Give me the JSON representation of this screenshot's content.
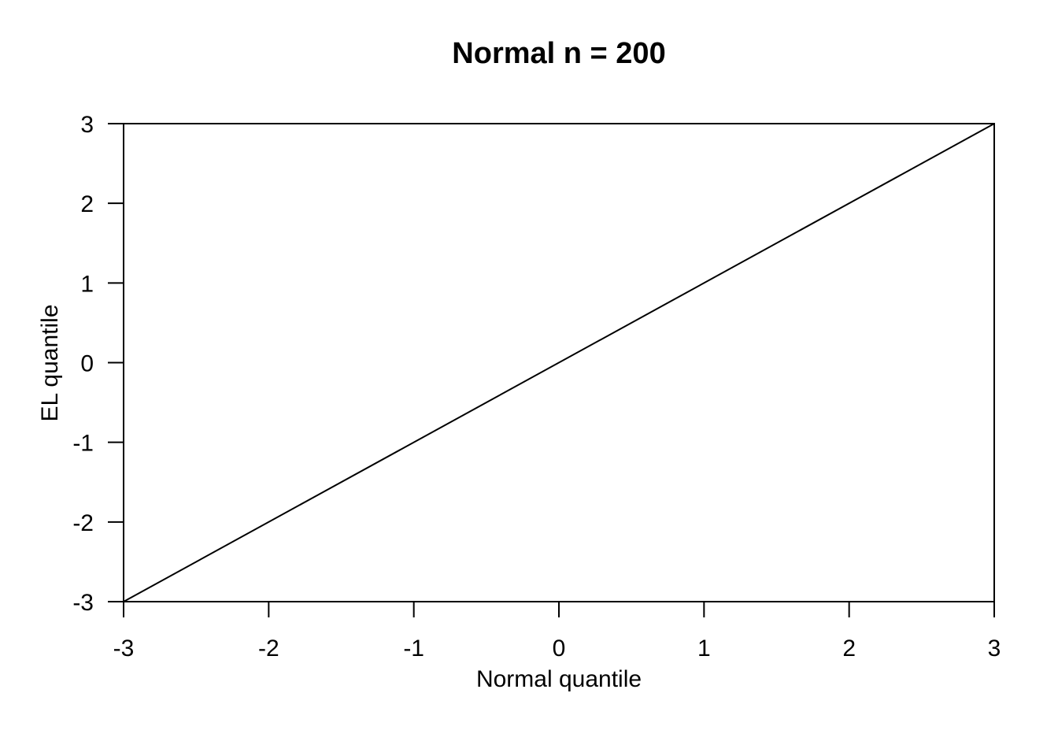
{
  "chart_data": {
    "type": "line",
    "title": "Normal n = 200",
    "xlabel": "Normal quantile",
    "ylabel": "EL quantile",
    "xlim": [
      -3,
      3
    ],
    "ylim": [
      -3,
      3
    ],
    "x_ticks": [
      -3,
      -2,
      -1,
      0,
      1,
      2,
      3
    ],
    "y_ticks": [
      -3,
      -2,
      -1,
      0,
      1,
      2,
      3
    ],
    "x_tick_labels": [
      "-3",
      "-2",
      "-1",
      "0",
      "1",
      "2",
      "3"
    ],
    "y_tick_labels": [
      "-3",
      "-2",
      "-1",
      "0",
      "1",
      "2",
      "3"
    ],
    "grid": false,
    "series": [
      {
        "x": [
          -3,
          3
        ],
        "y": [
          -3,
          3
        ],
        "color": "#000000"
      }
    ]
  }
}
